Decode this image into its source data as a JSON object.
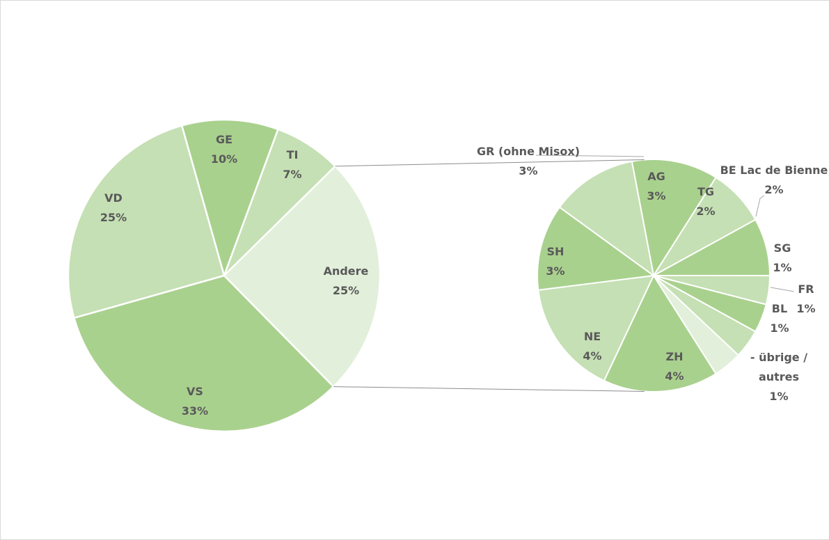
{
  "chart_data": {
    "type": "pie",
    "subtype": "pie-of-pie",
    "colors": [
      "#a9d18e",
      "#c5e0b4",
      "#e2efda"
    ],
    "primary": {
      "slices": [
        {
          "name": "GE",
          "label": "10%",
          "value": 10
        },
        {
          "name": "TI",
          "label": "7%",
          "value": 7
        },
        {
          "name": "Andere",
          "label": "25%",
          "value": 25
        },
        {
          "name": "VS",
          "label": "33%",
          "value": 33
        },
        {
          "name": "VD",
          "label": "25%",
          "value": 25
        }
      ]
    },
    "secondary": {
      "slices": [
        {
          "name": "AG",
          "label": "3%",
          "value": 3
        },
        {
          "name": "TG",
          "label": "2%",
          "value": 2
        },
        {
          "name": "BE Lac de Bienne",
          "label": "2%",
          "value": 2
        },
        {
          "name": "SG",
          "label": "1%",
          "value": 1
        },
        {
          "name": "FR",
          "label": "1%",
          "value": 1
        },
        {
          "name": "BL",
          "label": "1%",
          "value": 1
        },
        {
          "name": "- übrige / autres",
          "label": "1%",
          "value": 1
        },
        {
          "name": "ZH",
          "label": "4%",
          "value": 4
        },
        {
          "name": "NE",
          "label": "4%",
          "value": 4
        },
        {
          "name": "SH",
          "label": "3%",
          "value": 3
        },
        {
          "name": "GR (ohne Misox)",
          "label": "3%",
          "value": 3
        }
      ]
    }
  }
}
